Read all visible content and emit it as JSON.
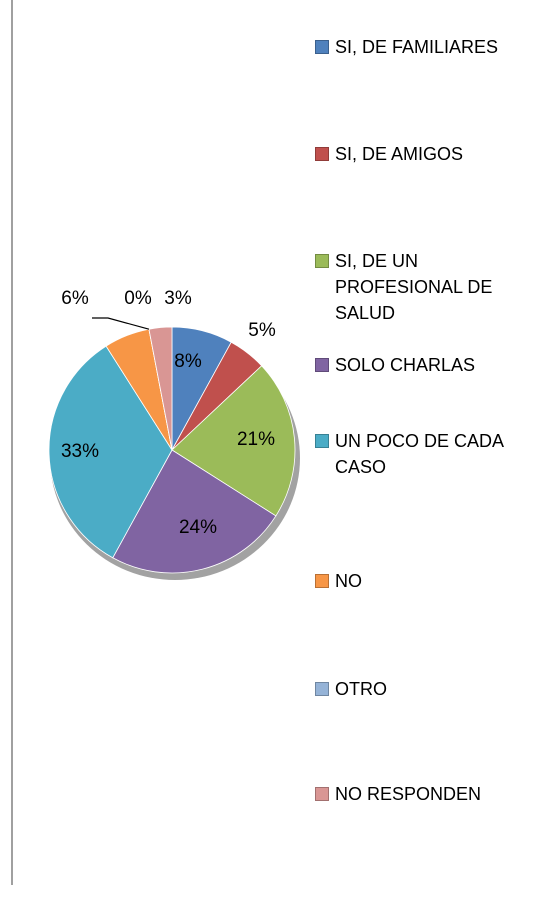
{
  "chart_data": {
    "type": "pie",
    "categories": [
      "SI, DE FAMILIARES",
      "SI, DE AMIGOS",
      "SI, DE UN PROFESIONAL DE SALUD",
      "SOLO CHARLAS",
      "UN POCO DE CADA CASO",
      "NO",
      "OTRO",
      "NO RESPONDEN"
    ],
    "values": [
      8,
      5,
      21,
      24,
      33,
      6,
      0,
      3
    ],
    "value_labels": [
      "8%",
      "5%",
      "21%",
      "24%",
      "33%",
      "6%",
      "0%",
      "3%"
    ],
    "colors": [
      "#4f81bd",
      "#c0504d",
      "#9bbb59",
      "#8064a2",
      "#4bacc6",
      "#f79646",
      "#95b3d7",
      "#d99694"
    ],
    "legend": "right"
  }
}
